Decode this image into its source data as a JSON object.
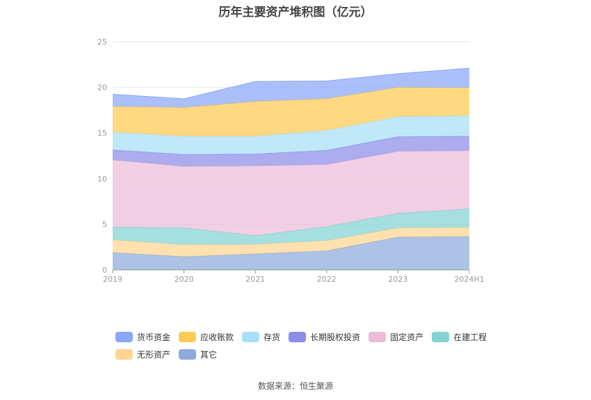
{
  "chart_data": {
    "type": "area",
    "stacked": true,
    "title": "历年主要资产堆积图（亿元）",
    "categories": [
      "2019",
      "2020",
      "2021",
      "2022",
      "2023",
      "2024H1"
    ],
    "ylim": [
      0,
      25
    ],
    "yticks": [
      0,
      5,
      10,
      15,
      20,
      25
    ],
    "grid": true,
    "legend_position": "bottom",
    "series": [
      {
        "name": "其它",
        "color": "#8faadc",
        "values": [
          1.9,
          1.45,
          1.75,
          2.1,
          3.6,
          3.65
        ]
      },
      {
        "name": "无形资产",
        "color": "#ffd591",
        "values": [
          1.4,
          1.3,
          1.05,
          1.1,
          1.0,
          1.0
        ]
      },
      {
        "name": "在建工程",
        "color": "#84d3d3",
        "values": [
          1.4,
          1.85,
          0.95,
          1.55,
          1.6,
          2.05
        ]
      },
      {
        "name": "固定资产",
        "color": "#ecbcd9",
        "values": [
          7.35,
          6.75,
          7.65,
          6.8,
          6.8,
          6.35
        ]
      },
      {
        "name": "长期股权投资",
        "color": "#8c8ce8",
        "values": [
          1.1,
          1.3,
          1.3,
          1.55,
          1.6,
          1.6
        ]
      },
      {
        "name": "存货",
        "color": "#a8dff6",
        "values": [
          1.95,
          2.0,
          1.95,
          2.2,
          2.2,
          2.25
        ]
      },
      {
        "name": "应收账款",
        "color": "#ffcb52",
        "values": [
          2.8,
          3.15,
          3.8,
          3.45,
          3.2,
          3.05
        ]
      },
      {
        "name": "货币资金",
        "color": "#8aa8f8",
        "values": [
          1.35,
          0.95,
          2.2,
          1.95,
          1.5,
          2.15
        ]
      }
    ]
  },
  "legend": {
    "items": [
      {
        "label": "货币资金",
        "color": "#8aa8f8"
      },
      {
        "label": "应收账款",
        "color": "#ffcb52"
      },
      {
        "label": "存货",
        "color": "#a8dff6"
      },
      {
        "label": "长期股权投资",
        "color": "#8c8ce8"
      },
      {
        "label": "固定资产",
        "color": "#ecbcd9"
      },
      {
        "label": "在建工程",
        "color": "#84d3d3"
      },
      {
        "label": "无形资产",
        "color": "#ffd591"
      },
      {
        "label": "其它",
        "color": "#8faadc"
      }
    ]
  },
  "footer": {
    "source": "数据来源：恒生聚源"
  }
}
